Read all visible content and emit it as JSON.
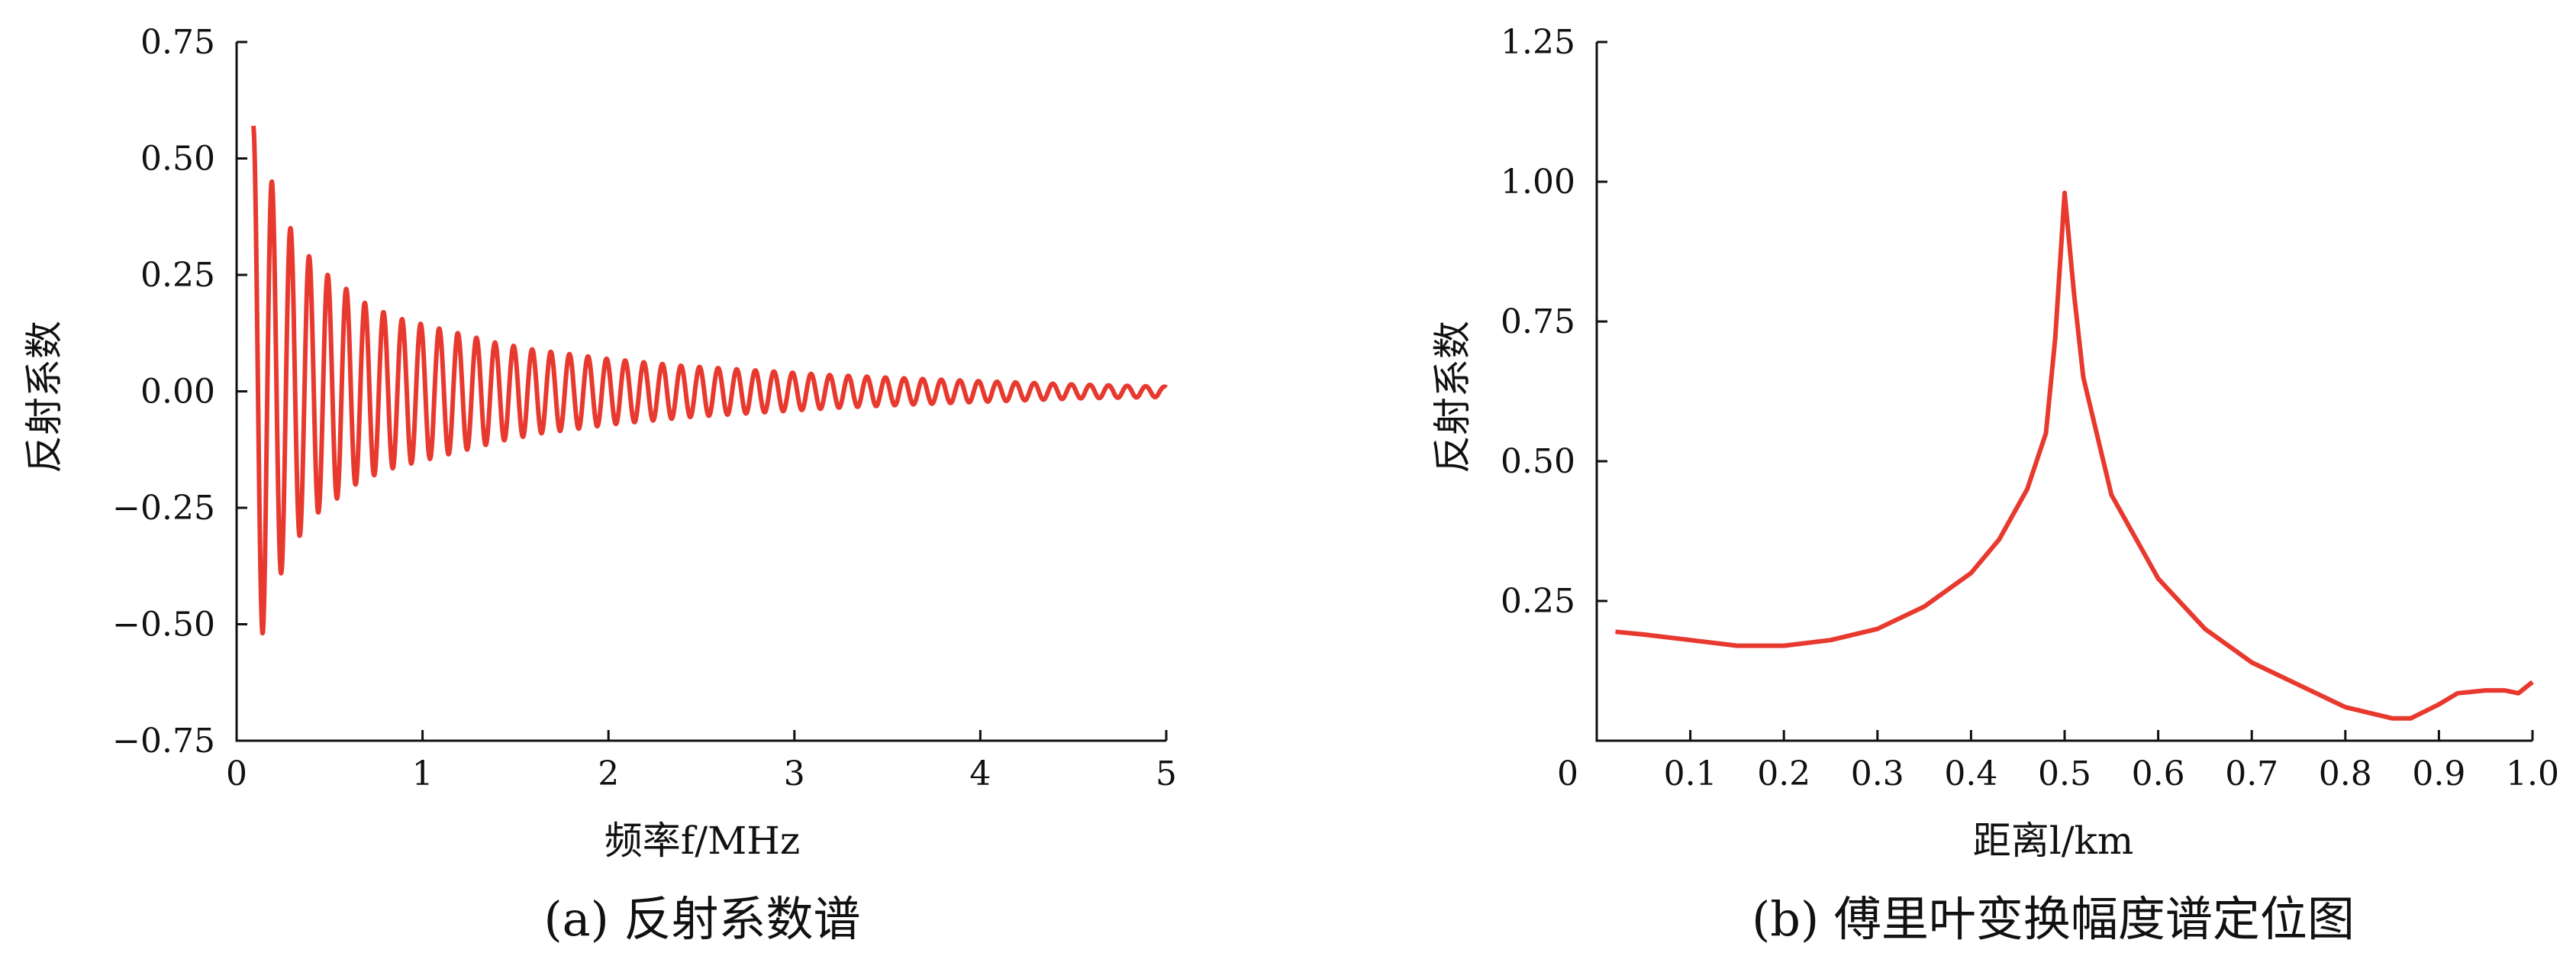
{
  "chart_data": [
    {
      "type": "line",
      "caption": "(a) 反射系数谱",
      "xlabel": "频率f/MHz",
      "ylabel": "反射系数",
      "xlim": [
        0,
        5
      ],
      "ylim": [
        -0.75,
        0.75
      ],
      "xticks": [
        "0",
        "1",
        "2",
        "3",
        "4",
        "5"
      ],
      "yticks": [
        "0.75",
        "0.50",
        "0.25",
        "0.00",
        "−0.25",
        "−0.50",
        "−0.75"
      ],
      "grid": false,
      "line_color": "#e8392f",
      "signal": {
        "form": "damped oscillation",
        "start_x": 0.09,
        "end_x": 5.0,
        "period": 0.1,
        "peaks": {
          "x": [
            0.09,
            0.19,
            0.29,
            0.39,
            0.49,
            0.59,
            0.69,
            0.79,
            0.89,
            0.99,
            1.19,
            1.39,
            1.59,
            1.79,
            1.99,
            2.39,
            2.79,
            3.19,
            3.59,
            3.99,
            4.49,
            4.99
          ],
          "y": [
            0.57,
            0.45,
            0.35,
            0.29,
            0.25,
            0.22,
            0.19,
            0.17,
            0.155,
            0.145,
            0.125,
            0.105,
            0.09,
            0.08,
            0.07,
            0.055,
            0.045,
            0.035,
            0.028,
            0.022,
            0.015,
            0.01
          ]
        },
        "troughs": {
          "x": [
            0.14,
            0.24,
            0.34,
            0.44,
            0.54,
            0.64,
            0.74,
            0.84,
            0.94,
            1.04,
            1.24,
            1.44,
            1.64,
            1.84,
            2.04,
            2.44,
            2.84,
            3.24,
            3.64,
            4.04,
            4.54,
            4.99
          ],
          "y": [
            -0.52,
            -0.39,
            -0.31,
            -0.26,
            -0.23,
            -0.2,
            -0.18,
            -0.165,
            -0.155,
            -0.145,
            -0.125,
            -0.105,
            -0.09,
            -0.08,
            -0.07,
            -0.055,
            -0.045,
            -0.035,
            -0.028,
            -0.022,
            -0.015,
            -0.012
          ]
        }
      }
    },
    {
      "type": "line",
      "caption": "(b) 傅里叶变换幅度谱定位图",
      "xlabel": "距离l/km",
      "ylabel": "反射系数",
      "xlim": [
        0,
        1.0
      ],
      "ylim": [
        0,
        1.25
      ],
      "xticks": [
        "0",
        "0.1",
        "0.2",
        "0.3",
        "0.4",
        "0.5",
        "0.6",
        "0.7",
        "0.8",
        "0.9",
        "1.0"
      ],
      "yticks": [
        "1.25",
        "1.00",
        "0.75",
        "0.50",
        "0.25"
      ],
      "grid": false,
      "line_color": "#e8392f",
      "x": [
        0.02,
        0.05,
        0.1,
        0.15,
        0.2,
        0.25,
        0.3,
        0.35,
        0.4,
        0.43,
        0.46,
        0.48,
        0.49,
        0.5,
        0.51,
        0.52,
        0.55,
        0.6,
        0.65,
        0.7,
        0.75,
        0.8,
        0.85,
        0.87,
        0.9,
        0.92,
        0.95,
        0.97,
        0.985,
        1.0
      ],
      "y": [
        0.195,
        0.19,
        0.18,
        0.17,
        0.17,
        0.18,
        0.2,
        0.24,
        0.3,
        0.36,
        0.45,
        0.55,
        0.72,
        0.98,
        0.8,
        0.65,
        0.44,
        0.29,
        0.2,
        0.14,
        0.1,
        0.06,
        0.04,
        0.04,
        0.065,
        0.085,
        0.09,
        0.09,
        0.085,
        0.105
      ]
    }
  ]
}
